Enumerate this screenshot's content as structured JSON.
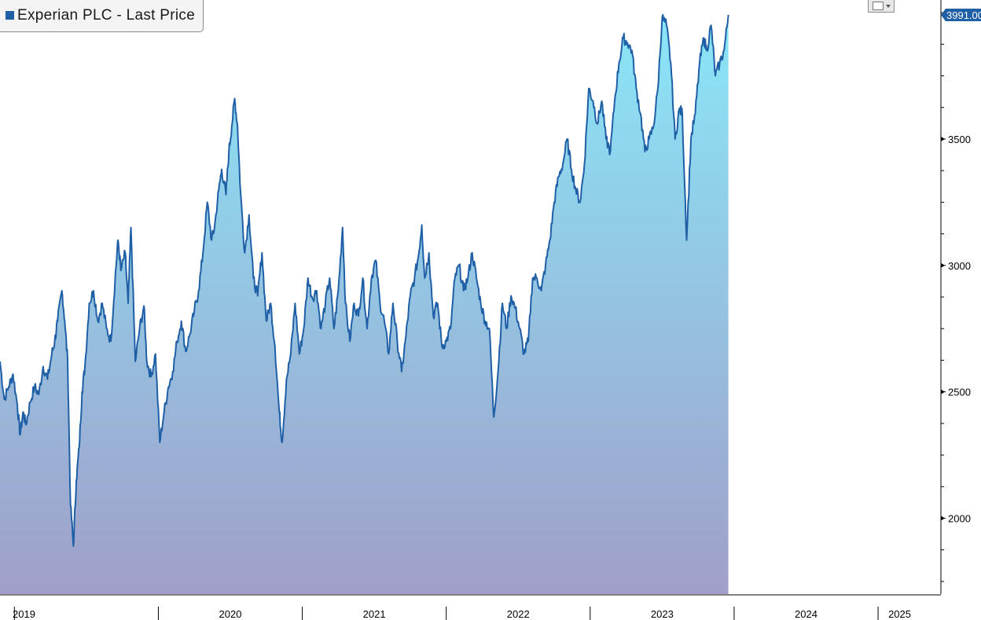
{
  "chart_data": {
    "type": "area",
    "title": "Experian PLC - Last Price",
    "last_value_label": "3991.00",
    "series_color": "#1f5fa6",
    "fill_top_color": "#8ae6f8",
    "fill_bottom_color": "#a09fc9",
    "ylim": [
      1700,
      4050
    ],
    "y_ticks": [
      2000,
      2500,
      3000,
      3500
    ],
    "x_year_labels": [
      "2019",
      "2020",
      "2021",
      "2022",
      "2023",
      "2024",
      "2025"
    ],
    "grid": false,
    "series": [
      {
        "values": [
          [
            2018.9,
            2620
          ],
          [
            2018.93,
            2470
          ],
          [
            2018.96,
            2520
          ],
          [
            2018.99,
            2570
          ],
          [
            2019.02,
            2450
          ],
          [
            2019.04,
            2330
          ],
          [
            2019.06,
            2420
          ],
          [
            2019.08,
            2370
          ],
          [
            2019.11,
            2460
          ],
          [
            2019.14,
            2520
          ],
          [
            2019.17,
            2490
          ],
          [
            2019.2,
            2600
          ],
          [
            2019.23,
            2550
          ],
          [
            2019.26,
            2650
          ],
          [
            2019.28,
            2700
          ],
          [
            2019.3,
            2780
          ],
          [
            2019.33,
            2900
          ],
          [
            2019.35,
            2780
          ],
          [
            2019.37,
            2620
          ],
          [
            2019.39,
            2050
          ],
          [
            2019.41,
            1890
          ],
          [
            2019.43,
            2150
          ],
          [
            2019.45,
            2280
          ],
          [
            2019.47,
            2500
          ],
          [
            2019.49,
            2600
          ],
          [
            2019.52,
            2850
          ],
          [
            2019.55,
            2900
          ],
          [
            2019.58,
            2780
          ],
          [
            2019.61,
            2850
          ],
          [
            2019.64,
            2750
          ],
          [
            2019.67,
            2700
          ],
          [
            2019.7,
            2950
          ],
          [
            2019.72,
            3100
          ],
          [
            2019.74,
            2980
          ],
          [
            2019.77,
            3050
          ],
          [
            2019.79,
            2850
          ],
          [
            2019.81,
            3150
          ],
          [
            2019.84,
            2620
          ],
          [
            2019.87,
            2750
          ],
          [
            2019.9,
            2840
          ],
          [
            2019.92,
            2620
          ],
          [
            2019.95,
            2560
          ],
          [
            2019.98,
            2650
          ],
          [
            2020.01,
            2300
          ],
          [
            2020.04,
            2420
          ],
          [
            2020.07,
            2520
          ],
          [
            2020.1,
            2580
          ],
          [
            2020.13,
            2700
          ],
          [
            2020.16,
            2780
          ],
          [
            2020.19,
            2660
          ],
          [
            2020.22,
            2730
          ],
          [
            2020.25,
            2820
          ],
          [
            2020.28,
            2900
          ],
          [
            2020.31,
            3050
          ],
          [
            2020.34,
            3250
          ],
          [
            2020.37,
            3100
          ],
          [
            2020.39,
            3150
          ],
          [
            2020.42,
            3300
          ],
          [
            2020.44,
            3380
          ],
          [
            2020.47,
            3280
          ],
          [
            2020.49,
            3450
          ],
          [
            2020.51,
            3550
          ],
          [
            2020.53,
            3660
          ],
          [
            2020.55,
            3550
          ],
          [
            2020.57,
            3300
          ],
          [
            2020.6,
            3050
          ],
          [
            2020.63,
            3200
          ],
          [
            2020.66,
            2950
          ],
          [
            2020.69,
            2880
          ],
          [
            2020.72,
            3050
          ],
          [
            2020.75,
            2780
          ],
          [
            2020.78,
            2850
          ],
          [
            2020.81,
            2680
          ],
          [
            2020.84,
            2420
          ],
          [
            2020.86,
            2300
          ],
          [
            2020.89,
            2550
          ],
          [
            2020.92,
            2650
          ],
          [
            2020.95,
            2850
          ],
          [
            2020.98,
            2650
          ],
          [
            2021.01,
            2750
          ],
          [
            2021.04,
            2950
          ],
          [
            2021.07,
            2870
          ],
          [
            2021.1,
            2900
          ],
          [
            2021.13,
            2750
          ],
          [
            2021.16,
            2850
          ],
          [
            2021.19,
            2950
          ],
          [
            2021.22,
            2750
          ],
          [
            2021.25,
            2900
          ],
          [
            2021.28,
            3150
          ],
          [
            2021.3,
            2850
          ],
          [
            2021.33,
            2700
          ],
          [
            2021.36,
            2850
          ],
          [
            2021.39,
            2800
          ],
          [
            2021.42,
            2950
          ],
          [
            2021.45,
            2750
          ],
          [
            2021.48,
            2950
          ],
          [
            2021.51,
            3020
          ],
          [
            2021.54,
            2850
          ],
          [
            2021.57,
            2780
          ],
          [
            2021.6,
            2650
          ],
          [
            2021.63,
            2850
          ],
          [
            2021.66,
            2700
          ],
          [
            2021.69,
            2580
          ],
          [
            2021.72,
            2720
          ],
          [
            2021.75,
            2880
          ],
          [
            2021.78,
            2950
          ],
          [
            2021.81,
            3050
          ],
          [
            2021.83,
            3160
          ],
          [
            2021.85,
            2950
          ],
          [
            2021.88,
            3050
          ],
          [
            2021.91,
            2800
          ],
          [
            2021.94,
            2850
          ],
          [
            2021.97,
            2680
          ],
          [
            2022.0,
            2700
          ],
          [
            2022.03,
            2750
          ],
          [
            2022.06,
            2950
          ],
          [
            2022.09,
            3000
          ],
          [
            2022.12,
            2900
          ],
          [
            2022.15,
            2950
          ],
          [
            2022.18,
            3050
          ],
          [
            2022.21,
            2950
          ],
          [
            2022.24,
            2850
          ],
          [
            2022.27,
            2780
          ],
          [
            2022.3,
            2750
          ],
          [
            2022.33,
            2400
          ],
          [
            2022.36,
            2580
          ],
          [
            2022.39,
            2850
          ],
          [
            2022.42,
            2750
          ],
          [
            2022.45,
            2880
          ],
          [
            2022.48,
            2830
          ],
          [
            2022.51,
            2750
          ],
          [
            2022.54,
            2650
          ],
          [
            2022.57,
            2700
          ],
          [
            2022.6,
            2950
          ],
          [
            2022.63,
            2950
          ],
          [
            2022.66,
            2900
          ],
          [
            2022.69,
            3000
          ],
          [
            2022.72,
            3100
          ],
          [
            2022.75,
            3250
          ],
          [
            2022.78,
            3350
          ],
          [
            2022.81,
            3400
          ],
          [
            2022.84,
            3500
          ],
          [
            2022.87,
            3380
          ],
          [
            2022.9,
            3300
          ],
          [
            2022.93,
            3250
          ],
          [
            2022.96,
            3400
          ],
          [
            2022.99,
            3700
          ],
          [
            2023.02,
            3650
          ],
          [
            2023.05,
            3560
          ],
          [
            2023.08,
            3650
          ],
          [
            2023.11,
            3500
          ],
          [
            2023.14,
            3450
          ],
          [
            2023.17,
            3650
          ],
          [
            2023.2,
            3800
          ],
          [
            2023.23,
            3900
          ],
          [
            2023.26,
            3880
          ],
          [
            2023.29,
            3850
          ],
          [
            2023.32,
            3700
          ],
          [
            2023.35,
            3600
          ],
          [
            2023.38,
            3450
          ],
          [
            2023.41,
            3500
          ],
          [
            2023.44,
            3550
          ],
          [
            2023.47,
            3700
          ],
          [
            2023.5,
            3980
          ],
          [
            2023.53,
            3950
          ],
          [
            2023.56,
            3800
          ],
          [
            2023.59,
            3500
          ],
          [
            2023.62,
            3620
          ],
          [
            2023.64,
            3600
          ],
          [
            2023.67,
            3100
          ],
          [
            2023.7,
            3500
          ],
          [
            2023.73,
            3600
          ],
          [
            2023.76,
            3800
          ],
          [
            2023.79,
            3900
          ],
          [
            2023.81,
            3850
          ],
          [
            2023.84,
            3950
          ],
          [
            2023.87,
            3750
          ],
          [
            2023.9,
            3800
          ],
          [
            2023.93,
            3850
          ],
          [
            2023.96,
            3991
          ]
        ]
      }
    ]
  }
}
